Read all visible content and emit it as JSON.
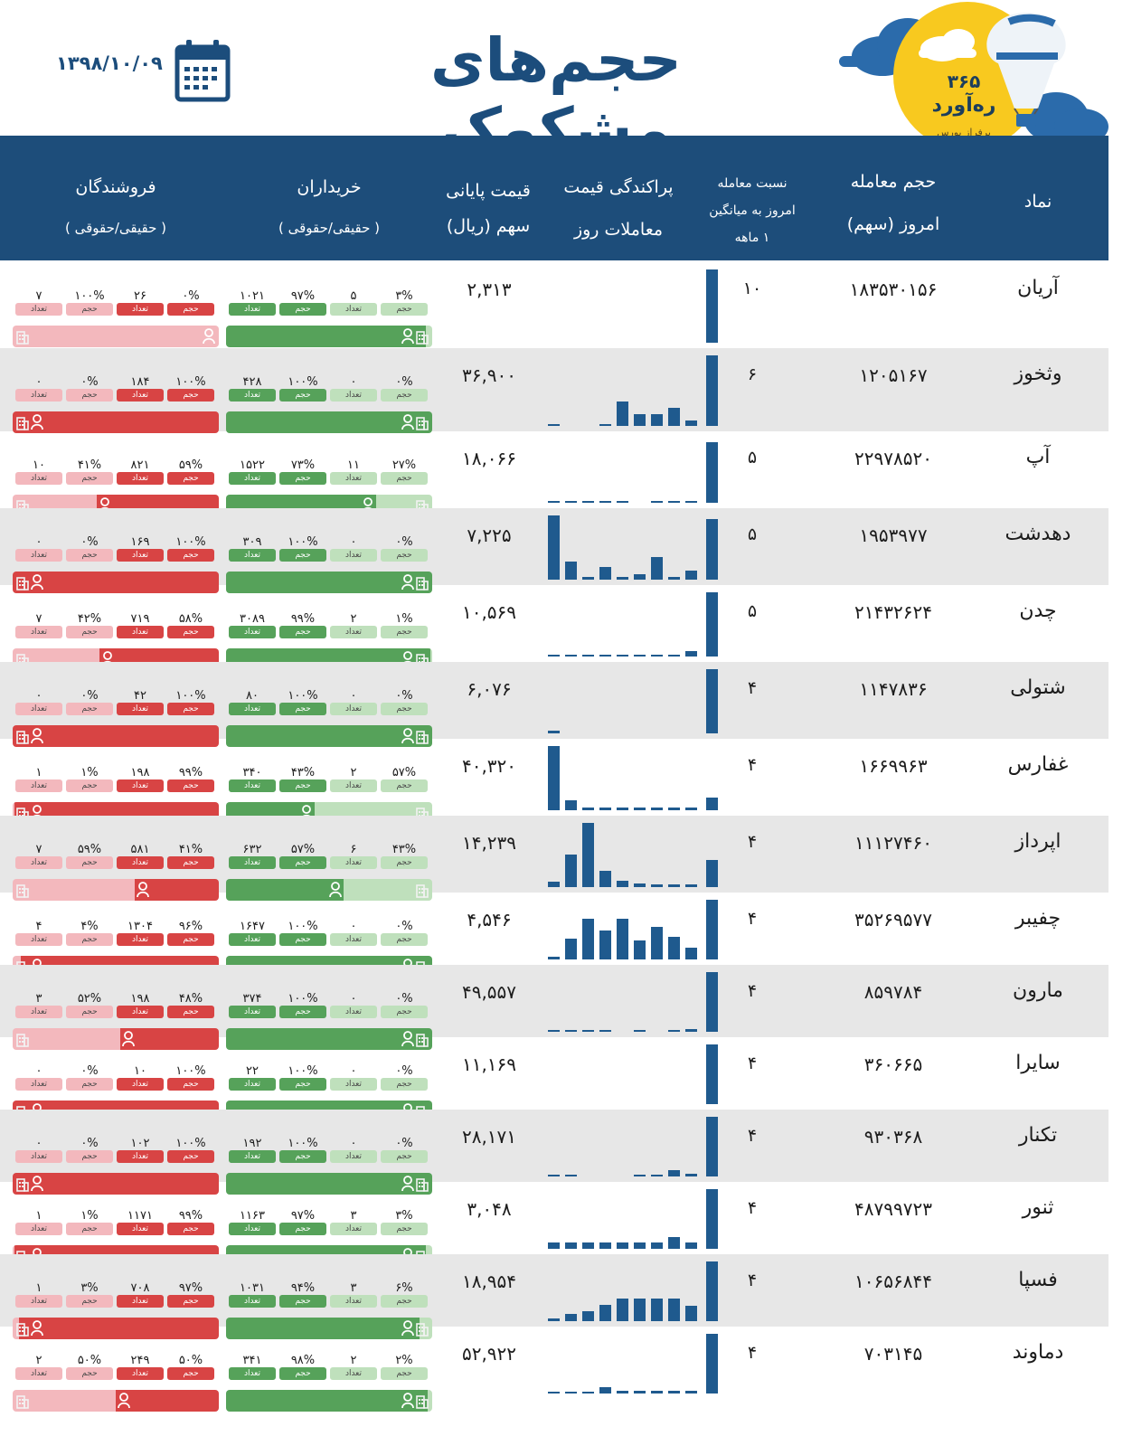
{
  "title": "حجم‌های مشکوک",
  "date": "۱۳۹۸/۱۰/۰۹",
  "brand": {
    "num": "۳۶۵",
    "name": "ره‌آورد",
    "tagline": "برفراز بورس"
  },
  "icons": {
    "calendar": "calendar-icon",
    "cloud": "cloud-icon",
    "balloon": "balloon-icon",
    "person": "person-icon",
    "building": "building-icon"
  },
  "colors": {
    "header_bg": "#1d4d7a",
    "title": "#1c4d7c",
    "logo_circle": "#f8c91f",
    "cloud": "#2b6bab",
    "bar": "#1f5a8e",
    "buyer_dark": "#56a25a",
    "buyer_light": "#bfe0bc",
    "seller_dark": "#d84444",
    "seller_light": "#f3b8bd",
    "row_shade": "#e7e7e7"
  },
  "headers": {
    "symbol": "نماد",
    "volume": [
      "حجم معامله",
      "امروز (سهم)"
    ],
    "ratio": [
      "نسبت معامله",
      "امروز به میانگین",
      "۱ ماهه"
    ],
    "dispersion": [
      "پراکندگی قیمت",
      "معاملات روز"
    ],
    "price": [
      "قیمت پایانی",
      "سهم (ریال)"
    ],
    "buyers": [
      "خریداران",
      "( حقیقی/حقوقی )"
    ],
    "sellers": [
      "فروشندگان",
      "( حقیقی/حقوقی )"
    ]
  },
  "chips": {
    "volume": "حجم",
    "count": "تعداد"
  },
  "rows": [
    {
      "symbol": "آریان",
      "volume": "۱۸۳۵۳۰۱۵۶",
      "ratio": "۱۰",
      "price": "۲,۳۱۳",
      "spread": [
        0,
        0,
        0,
        0,
        0,
        0,
        0,
        0,
        0,
        1.0
      ],
      "buyers": {
        "legal_vol": "۳%",
        "legal_count": "۵",
        "real_vol": "۹۷%",
        "real_count": "۱۰۲۱",
        "real_share": 0.97
      },
      "sellers": {
        "real_vol": "۰%",
        "real_count": "۲۶",
        "legal_vol": "۱۰۰%",
        "legal_count": "۷",
        "real_share": 0.0
      }
    },
    {
      "symbol": "وثخوز",
      "volume": "۱۲۰۵۱۶۷",
      "ratio": "۶",
      "price": "۳۶,۹۰۰",
      "spread": [
        0.02,
        0,
        0,
        0.02,
        0.35,
        0.17,
        0.17,
        0.25,
        0.08,
        1.0
      ],
      "buyers": {
        "legal_vol": "۰%",
        "legal_count": "۰",
        "real_vol": "۱۰۰%",
        "real_count": "۴۲۸",
        "real_share": 1.0
      },
      "sellers": {
        "real_vol": "۱۰۰%",
        "real_count": "۱۸۴",
        "legal_vol": "۰%",
        "legal_count": "۰",
        "real_share": 1.0
      }
    },
    {
      "symbol": "آپ",
      "volume": "۲۲۹۷۸۵۲۰",
      "ratio": "۵",
      "price": "۱۸,۰۶۶",
      "spread": [
        0.02,
        0.02,
        0.02,
        0.02,
        0.02,
        0,
        0.02,
        0.02,
        0.02,
        0.95
      ],
      "buyers": {
        "legal_vol": "۲۷%",
        "legal_count": "۱۱",
        "real_vol": "۷۳%",
        "real_count": "۱۵۲۲",
        "real_share": 0.73
      },
      "sellers": {
        "real_vol": "۵۹%",
        "real_count": "۸۲۱",
        "legal_vol": "۴۱%",
        "legal_count": "۱۰",
        "real_share": 0.59
      }
    },
    {
      "symbol": "دهدشت",
      "volume": "۱۹۵۳۹۷۷",
      "ratio": "۵",
      "price": "۷,۲۲۵",
      "spread": [
        1.0,
        0.28,
        0.04,
        0.2,
        0.04,
        0.08,
        0.35,
        0.04,
        0.14,
        0.95
      ],
      "buyers": {
        "legal_vol": "۰%",
        "legal_count": "۰",
        "real_vol": "۱۰۰%",
        "real_count": "۳۰۹",
        "real_share": 1.0
      },
      "sellers": {
        "real_vol": "۱۰۰%",
        "real_count": "۱۶۹",
        "legal_vol": "۰%",
        "legal_count": "۰",
        "real_share": 1.0
      }
    },
    {
      "symbol": "چدن",
      "volume": "۲۱۴۳۲۶۲۴",
      "ratio": "۵",
      "price": "۱۰,۵۶۹",
      "spread": [
        0.02,
        0.02,
        0.02,
        0.02,
        0.02,
        0.02,
        0.02,
        0.03,
        0.08,
        1.0
      ],
      "buyers": {
        "legal_vol": "۱%",
        "legal_count": "۲",
        "real_vol": "۹۹%",
        "real_count": "۳۰۸۹",
        "real_share": 0.99
      },
      "sellers": {
        "real_vol": "۵۸%",
        "real_count": "۷۱۹",
        "legal_vol": "۴۲%",
        "legal_count": "۷",
        "real_share": 0.58
      }
    },
    {
      "symbol": "شتولی",
      "volume": "۱۱۴۷۸۳۶",
      "ratio": "۴",
      "price": "۶,۰۷۶",
      "spread": [
        0.04,
        0,
        0,
        0,
        0,
        0,
        0,
        0,
        0,
        1.0
      ],
      "buyers": {
        "legal_vol": "۰%",
        "legal_count": "۰",
        "real_vol": "۱۰۰%",
        "real_count": "۸۰",
        "real_share": 1.0
      },
      "sellers": {
        "real_vol": "۱۰۰%",
        "real_count": "۴۲",
        "legal_vol": "۰%",
        "legal_count": "۰",
        "real_share": 1.0
      }
    },
    {
      "symbol": "غفارس",
      "volume": "۱۶۶۹۹۶۳",
      "ratio": "۴",
      "price": "۴۰,۳۲۰",
      "spread": [
        1.0,
        0.15,
        0.04,
        0.04,
        0.04,
        0.04,
        0.04,
        0.04,
        0.04,
        0.2
      ],
      "buyers": {
        "legal_vol": "۵۷%",
        "legal_count": "۲",
        "real_vol": "۴۳%",
        "real_count": "۳۴۰",
        "real_share": 0.43
      },
      "sellers": {
        "real_vol": "۹۹%",
        "real_count": "۱۹۸",
        "legal_vol": "۱%",
        "legal_count": "۱",
        "real_share": 0.99
      }
    },
    {
      "symbol": "اپرداز",
      "volume": "۱۱۱۲۷۴۶۰",
      "ratio": "۴",
      "price": "۱۴,۲۳۹",
      "spread": [
        0.08,
        0.5,
        1.0,
        0.25,
        0.1,
        0.05,
        0.04,
        0.04,
        0.04,
        0.42
      ],
      "buyers": {
        "legal_vol": "۴۳%",
        "legal_count": "۶",
        "real_vol": "۵۷%",
        "real_count": "۶۳۲",
        "real_share": 0.57
      },
      "sellers": {
        "real_vol": "۴۱%",
        "real_count": "۵۸۱",
        "legal_vol": "۵۹%",
        "legal_count": "۷",
        "real_share": 0.41
      }
    },
    {
      "symbol": "چفیبر",
      "volume": "۳۵۲۶۹۵۷۷",
      "ratio": "۴",
      "price": "۴,۵۴۶",
      "spread": [
        0.04,
        0.35,
        0.68,
        0.48,
        0.68,
        0.32,
        0.55,
        0.38,
        0.2,
        1.0
      ],
      "buyers": {
        "legal_vol": "۰%",
        "legal_count": "۰",
        "real_vol": "۱۰۰%",
        "real_count": "۱۶۴۷",
        "real_share": 1.0
      },
      "sellers": {
        "real_vol": "۹۶%",
        "real_count": "۱۳۰۴",
        "legal_vol": "۴%",
        "legal_count": "۴",
        "real_share": 0.96
      }
    },
    {
      "symbol": "مارون",
      "volume": "۸۵۹۷۸۴",
      "ratio": "۴",
      "price": "۴۹,۵۵۷",
      "spread": [
        0.03,
        0.03,
        0.03,
        0.03,
        0,
        0.03,
        0,
        0.03,
        0.05,
        1.0
      ],
      "buyers": {
        "legal_vol": "۰%",
        "legal_count": "۰",
        "real_vol": "۱۰۰%",
        "real_count": "۳۷۴",
        "real_share": 1.0
      },
      "sellers": {
        "real_vol": "۴۸%",
        "real_count": "۱۹۸",
        "legal_vol": "۵۲%",
        "legal_count": "۳",
        "real_share": 0.48
      }
    },
    {
      "symbol": "سایرا",
      "volume": "۳۶۰۶۶۵",
      "ratio": "۴",
      "price": "۱۱,۱۶۹",
      "spread": [
        0,
        0,
        0,
        0,
        0,
        0,
        0,
        0,
        0,
        1.0
      ],
      "buyers": {
        "legal_vol": "۰%",
        "legal_count": "۰",
        "real_vol": "۱۰۰%",
        "real_count": "۲۲",
        "real_share": 1.0
      },
      "sellers": {
        "real_vol": "۱۰۰%",
        "real_count": "۱۰",
        "legal_vol": "۰%",
        "legal_count": "۰",
        "real_share": 1.0
      }
    },
    {
      "symbol": "تکنار",
      "volume": "۹۳۰۳۶۸",
      "ratio": "۴",
      "price": "۲۸,۱۷۱",
      "spread": [
        0.02,
        0.02,
        0,
        0,
        0,
        0.02,
        0.02,
        0.1,
        0.04,
        1.0
      ],
      "buyers": {
        "legal_vol": "۰%",
        "legal_count": "۰",
        "real_vol": "۱۰۰%",
        "real_count": "۱۹۲",
        "real_share": 1.0
      },
      "sellers": {
        "real_vol": "۱۰۰%",
        "real_count": "۱۰۲",
        "legal_vol": "۰%",
        "legal_count": "۰",
        "real_share": 1.0
      }
    },
    {
      "symbol": "ثنور",
      "volume": "۴۸۷۹۹۷۲۳",
      "ratio": "۴",
      "price": "۳,۰۴۸",
      "spread": [
        0.1,
        0.1,
        0.1,
        0.1,
        0.1,
        0.1,
        0.1,
        0.2,
        0.1,
        1.0
      ],
      "buyers": {
        "legal_vol": "۳%",
        "legal_count": "۳",
        "real_vol": "۹۷%",
        "real_count": "۱۱۶۳",
        "real_share": 0.97
      },
      "sellers": {
        "real_vol": "۹۹%",
        "real_count": "۱۱۷۱",
        "legal_vol": "۱%",
        "legal_count": "۱",
        "real_share": 0.99
      }
    },
    {
      "symbol": "فسپا",
      "volume": "۱۰۶۵۶۸۴۴",
      "ratio": "۴",
      "price": "۱۸,۹۵۴",
      "spread": [
        0.05,
        0.12,
        0.16,
        0.28,
        0.38,
        0.38,
        0.38,
        0.38,
        0.25,
        1.0
      ],
      "buyers": {
        "legal_vol": "۶%",
        "legal_count": "۳",
        "real_vol": "۹۴%",
        "real_count": "۱۰۳۱",
        "real_share": 0.94
      },
      "sellers": {
        "real_vol": "۹۷%",
        "real_count": "۷۰۸",
        "legal_vol": "۳%",
        "legal_count": "۱",
        "real_share": 0.97
      }
    },
    {
      "symbol": "دماوند",
      "volume": "۷۰۳۱۴۵",
      "ratio": "۴",
      "price": "۵۲,۹۲۲",
      "spread": [
        0.02,
        0.02,
        0.02,
        0.1,
        0.04,
        0.04,
        0.04,
        0.04,
        0.04,
        1.0
      ],
      "buyers": {
        "legal_vol": "۲%",
        "legal_count": "۲",
        "real_vol": "۹۸%",
        "real_count": "۳۴۱",
        "real_share": 0.98
      },
      "sellers": {
        "real_vol": "۵۰%",
        "real_count": "۲۴۹",
        "legal_vol": "۵۰%",
        "legal_count": "۲",
        "real_share": 0.5
      }
    }
  ]
}
